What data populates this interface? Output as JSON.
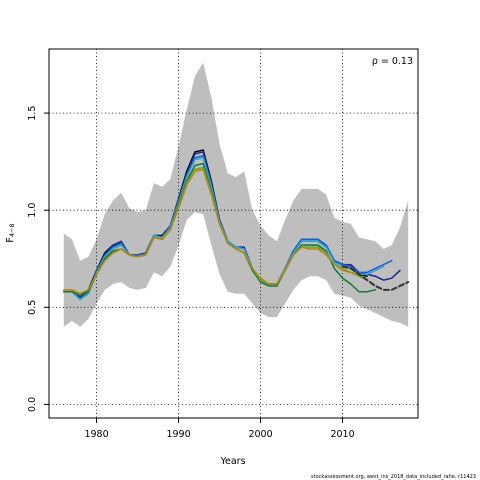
{
  "chart_data": {
    "type": "line",
    "xlabel": "Years",
    "ylabel": "F",
    "ylabel_sub": "4−8",
    "annotation": "ρ = 0.13",
    "footer": "stockassessment.org, west_ins_2018_data_included_rahe, r11423",
    "xlim": [
      1974.2,
      2019.2
    ],
    "ylim": [
      -0.07,
      1.83
    ],
    "xticks": [
      1980,
      1990,
      2000,
      2010
    ],
    "yticks": [
      0.0,
      0.5,
      1.0,
      1.5
    ],
    "ytick_labels": [
      "0.0",
      "0.5",
      "1.0",
      "1.5"
    ],
    "grid": "dotted",
    "band": {
      "x": [
        1976,
        1977,
        1978,
        1979,
        1980,
        1981,
        1982,
        1983,
        1984,
        1985,
        1986,
        1987,
        1988,
        1989,
        1990,
        1991,
        1992,
        1993,
        1994,
        1995,
        1996,
        1997,
        1998,
        1999,
        2000,
        2001,
        2002,
        2003,
        2004,
        2005,
        2006,
        2007,
        2008,
        2009,
        2010,
        2011,
        2012,
        2013,
        2014,
        2015,
        2016,
        2017,
        2018
      ],
      "upper": [
        0.88,
        0.85,
        0.74,
        0.76,
        0.85,
        0.98,
        1.05,
        1.09,
        1.01,
        0.99,
        1.0,
        1.14,
        1.12,
        1.16,
        1.33,
        1.52,
        1.69,
        1.76,
        1.58,
        1.34,
        1.19,
        1.17,
        1.2,
        1.0,
        0.92,
        0.87,
        0.84,
        0.95,
        1.05,
        1.11,
        1.11,
        1.11,
        1.08,
        0.96,
        0.94,
        0.93,
        0.86,
        0.85,
        0.84,
        0.8,
        0.82,
        0.91,
        1.05
      ],
      "lower": [
        0.4,
        0.43,
        0.4,
        0.44,
        0.52,
        0.59,
        0.62,
        0.63,
        0.6,
        0.59,
        0.6,
        0.68,
        0.66,
        0.71,
        0.82,
        0.95,
        0.99,
        0.98,
        0.82,
        0.67,
        0.58,
        0.57,
        0.57,
        0.52,
        0.47,
        0.45,
        0.45,
        0.52,
        0.59,
        0.64,
        0.66,
        0.66,
        0.64,
        0.57,
        0.56,
        0.55,
        0.51,
        0.49,
        0.47,
        0.45,
        0.43,
        0.42,
        0.4
      ],
      "color": "#bebebe"
    },
    "series": [
      {
        "color": "#000000",
        "width": 1.5,
        "dash": "none",
        "x": [
          1976,
          1977,
          1978,
          1979,
          1980,
          1981,
          1982,
          1983,
          1984,
          1985,
          1986,
          1987,
          1988,
          1989,
          1990,
          1991,
          1992,
          1993,
          1994,
          1995,
          1996,
          1997,
          1998,
          1999,
          2000,
          2001,
          2002,
          2003,
          2004,
          2005,
          2006,
          2007,
          2008,
          2009,
          2010,
          2011,
          2012,
          2013
        ],
        "values": [
          0.58,
          0.58,
          0.56,
          0.59,
          0.69,
          0.78,
          0.82,
          0.83,
          0.77,
          0.77,
          0.78,
          0.87,
          0.87,
          0.92,
          1.06,
          1.2,
          1.3,
          1.31,
          1.15,
          0.95,
          0.84,
          0.81,
          0.8,
          0.7,
          0.64,
          0.62,
          0.62,
          0.7,
          0.79,
          0.84,
          0.84,
          0.84,
          0.81,
          0.74,
          0.72,
          0.71,
          0.67,
          0.66
        ]
      },
      {
        "color": "#1b2a8c",
        "width": 1.5,
        "dash": "none",
        "x": [
          1976,
          1977,
          1978,
          1979,
          1980,
          1981,
          1982,
          1983,
          1984,
          1985,
          1986,
          1987,
          1988,
          1989,
          1990,
          1991,
          1992,
          1993,
          1994,
          1995,
          1996,
          1997,
          1998,
          1999,
          2000,
          2001,
          2002,
          2003,
          2004,
          2005,
          2006,
          2007,
          2008,
          2009,
          2010,
          2011,
          2012,
          2013,
          2014,
          2015,
          2016,
          2017
        ],
        "values": [
          0.58,
          0.58,
          0.55,
          0.59,
          0.69,
          0.77,
          0.82,
          0.84,
          0.77,
          0.77,
          0.78,
          0.87,
          0.86,
          0.92,
          1.05,
          1.19,
          1.29,
          1.3,
          1.14,
          0.95,
          0.84,
          0.81,
          0.81,
          0.7,
          0.64,
          0.62,
          0.62,
          0.7,
          0.79,
          0.85,
          0.85,
          0.85,
          0.82,
          0.74,
          0.72,
          0.72,
          0.68,
          0.67,
          0.66,
          0.64,
          0.65,
          0.69
        ]
      },
      {
        "color": "#1f5fc9",
        "width": 1.5,
        "dash": "none",
        "x": [
          1976,
          1977,
          1978,
          1979,
          1980,
          1981,
          1982,
          1983,
          1984,
          1985,
          1986,
          1987,
          1988,
          1989,
          1990,
          1991,
          1992,
          1993,
          1994,
          1995,
          1996,
          1997,
          1998,
          1999,
          2000,
          2001,
          2002,
          2003,
          2004,
          2005,
          2006,
          2007,
          2008,
          2009,
          2010,
          2011,
          2012,
          2013,
          2014,
          2015,
          2016
        ],
        "values": [
          0.58,
          0.58,
          0.54,
          0.58,
          0.68,
          0.77,
          0.81,
          0.83,
          0.77,
          0.77,
          0.78,
          0.87,
          0.86,
          0.92,
          1.05,
          1.18,
          1.27,
          1.28,
          1.13,
          0.94,
          0.84,
          0.81,
          0.8,
          0.7,
          0.64,
          0.62,
          0.62,
          0.7,
          0.79,
          0.85,
          0.85,
          0.85,
          0.82,
          0.74,
          0.72,
          0.71,
          0.68,
          0.68,
          0.7,
          0.72,
          0.74
        ]
      },
      {
        "color": "#2aa9d6",
        "width": 1.5,
        "dash": "none",
        "x": [
          1976,
          1977,
          1978,
          1979,
          1980,
          1981,
          1982,
          1983,
          1984,
          1985,
          1986,
          1987,
          1988,
          1989,
          1990,
          1991,
          1992,
          1993,
          1994,
          1995,
          1996,
          1997,
          1998,
          1999,
          2000,
          2001,
          2002,
          2003,
          2004,
          2005,
          2006,
          2007,
          2008,
          2009,
          2010,
          2011,
          2012,
          2013,
          2014,
          2015
        ],
        "values": [
          0.58,
          0.58,
          0.54,
          0.57,
          0.68,
          0.76,
          0.8,
          0.82,
          0.77,
          0.76,
          0.77,
          0.87,
          0.86,
          0.91,
          1.04,
          1.17,
          1.26,
          1.27,
          1.12,
          0.94,
          0.84,
          0.81,
          0.8,
          0.7,
          0.64,
          0.62,
          0.62,
          0.7,
          0.78,
          0.84,
          0.84,
          0.84,
          0.81,
          0.73,
          0.71,
          0.7,
          0.67,
          0.67,
          0.69,
          0.71
        ]
      },
      {
        "color": "#0f7a3a",
        "width": 1.5,
        "dash": "none",
        "x": [
          1976,
          1977,
          1978,
          1979,
          1980,
          1981,
          1982,
          1983,
          1984,
          1985,
          1986,
          1987,
          1988,
          1989,
          1990,
          1991,
          1992,
          1993,
          1994,
          1995,
          1996,
          1997,
          1998,
          1999,
          2000,
          2001,
          2002,
          2003,
          2004,
          2005,
          2006,
          2007,
          2008,
          2009,
          2010,
          2011,
          2012,
          2013,
          2014
        ],
        "values": [
          0.58,
          0.58,
          0.56,
          0.58,
          0.67,
          0.75,
          0.79,
          0.8,
          0.77,
          0.76,
          0.77,
          0.86,
          0.85,
          0.9,
          1.03,
          1.15,
          1.23,
          1.24,
          1.1,
          0.93,
          0.83,
          0.8,
          0.78,
          0.69,
          0.63,
          0.61,
          0.61,
          0.69,
          0.77,
          0.82,
          0.82,
          0.82,
          0.79,
          0.7,
          0.65,
          0.62,
          0.58,
          0.58,
          0.59
        ]
      },
      {
        "color": "#73a628",
        "width": 1.5,
        "dash": "none",
        "x": [
          1976,
          1977,
          1978,
          1979,
          1980,
          1981,
          1982,
          1983,
          1984,
          1985,
          1986,
          1987,
          1988,
          1989,
          1990,
          1991,
          1992,
          1993,
          1994,
          1995,
          1996,
          1997,
          1998,
          1999,
          2000,
          2001,
          2002,
          2003,
          2004,
          2005,
          2006,
          2007,
          2008,
          2009,
          2010,
          2011,
          2012,
          2013
        ],
        "values": [
          0.59,
          0.59,
          0.57,
          0.59,
          0.67,
          0.74,
          0.78,
          0.8,
          0.77,
          0.76,
          0.77,
          0.86,
          0.85,
          0.9,
          1.02,
          1.14,
          1.21,
          1.22,
          1.09,
          0.93,
          0.83,
          0.8,
          0.78,
          0.7,
          0.64,
          0.62,
          0.62,
          0.69,
          0.77,
          0.81,
          0.81,
          0.81,
          0.78,
          0.72,
          0.7,
          0.68,
          0.66,
          0.64
        ]
      },
      {
        "color": "#b8860b",
        "width": 1.5,
        "dash": "none",
        "x": [
          1976,
          1977,
          1978,
          1979,
          1980,
          1981,
          1982,
          1983,
          1984,
          1985,
          1986,
          1987,
          1988,
          1989,
          1990,
          1991,
          1992,
          1993,
          1994,
          1995,
          1996,
          1997,
          1998,
          1999,
          2000,
          2001,
          2002,
          2003,
          2004,
          2005,
          2006,
          2007,
          2008,
          2009,
          2010,
          2011,
          2012
        ],
        "values": [
          0.59,
          0.59,
          0.57,
          0.59,
          0.67,
          0.74,
          0.78,
          0.8,
          0.77,
          0.76,
          0.77,
          0.86,
          0.85,
          0.9,
          1.01,
          1.13,
          1.2,
          1.21,
          1.08,
          0.93,
          0.83,
          0.8,
          0.78,
          0.7,
          0.65,
          0.62,
          0.62,
          0.69,
          0.77,
          0.81,
          0.8,
          0.8,
          0.77,
          0.72,
          0.69,
          0.68,
          0.67
        ]
      },
      {
        "color": "#333333",
        "width": 2,
        "dash": "5,3",
        "x": [
          2010,
          2011,
          2012,
          2013,
          2014,
          2015,
          2016,
          2017,
          2018
        ],
        "values": [
          0.71,
          0.7,
          0.67,
          0.64,
          0.61,
          0.59,
          0.59,
          0.61,
          0.63
        ]
      }
    ]
  }
}
